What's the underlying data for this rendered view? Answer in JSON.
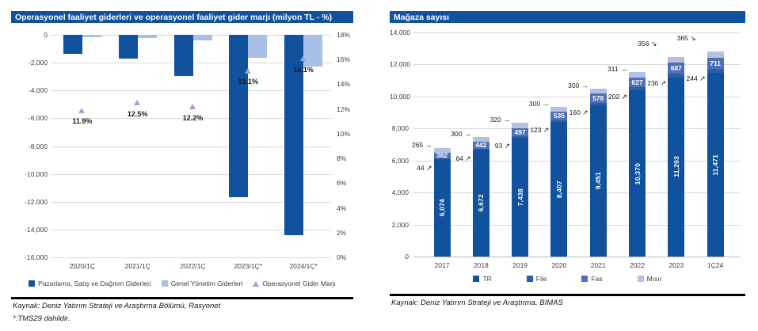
{
  "colors": {
    "header_bg": "#11529E",
    "grid": "#D9D9D9",
    "axis_line": "#BFBFBF",
    "axis_text": "#404040",
    "annotation_text": "#1A1A1A",
    "white_label": "#FFFFFF"
  },
  "left_panel": {
    "source": "Kaynak: Deniz Yatırım Strateji ve Araştırma Bölümü, Rasyonet",
    "footnote": "*:TMS29 dahildir."
  },
  "right_panel": {
    "source": "Kaynak: Deniz Yatırım Strateji ve Araştırma, BIMAS"
  },
  "chart_data": [
    {
      "type": "bar",
      "title": "Operasyonel faaliyet giderleri ve operasyonel faaliyet gider marjı (milyon TL - %)",
      "categories": [
        "2020/1Ç",
        "2021/1Ç",
        "2022/1Ç",
        "2023/1Ç*",
        "2024/1Ç*"
      ],
      "series": [
        {
          "name": "Pazarlama, Satış ve Dağıtım Giderleri",
          "type": "bar",
          "axis": "left",
          "color": "#11529E",
          "values": [
            -1350,
            -1700,
            -2950,
            -11650,
            -14400
          ]
        },
        {
          "name": "Genel Yönetim Giderleri",
          "type": "bar",
          "axis": "left",
          "color": "#A9C0E6",
          "values": [
            -150,
            -250,
            -400,
            -1650,
            -2250
          ]
        },
        {
          "name": "Operasyonel Gider Marjı",
          "type": "scatter",
          "marker": "triangle",
          "axis": "right",
          "color": "#8FAADC",
          "values": [
            11.9,
            12.5,
            12.2,
            15.1,
            16.1
          ],
          "labels": [
            "11.9%",
            "12.5%",
            "12.2%",
            "15.1%",
            "16.1%"
          ]
        }
      ],
      "left_axis": {
        "min": -16000,
        "max": 0,
        "step": 2000,
        "ticks": [
          "0",
          "-2,000",
          "-4,000",
          "-6,000",
          "-8,000",
          "-10,000",
          "-12,000",
          "-14,000",
          "-16,000"
        ]
      },
      "right_axis": {
        "min": 0,
        "max": 18,
        "step": 2,
        "ticks": [
          "18%",
          "16%",
          "14%",
          "12%",
          "10%",
          "8%",
          "6%",
          "4%",
          "2%",
          "0%"
        ]
      },
      "grid": true,
      "legend_position": "bottom"
    },
    {
      "type": "stacked-bar",
      "title": "Mağaza sayısı",
      "categories": [
        "2017",
        "2018",
        "2019",
        "2020",
        "2021",
        "2022",
        "2023",
        "1Ç24"
      ],
      "series": [
        {
          "name": "TR",
          "color": "#11529E",
          "values": [
            6074,
            6672,
            7438,
            8407,
            9451,
            10370,
            11203,
            11471
          ],
          "labels": [
            "6,074",
            "6,672",
            "7,438",
            "8,407",
            "9,451",
            "10,370",
            "11,203",
            "11,471"
          ],
          "label_style": "white-vertical-inside"
        },
        {
          "name": "File",
          "color": "#2E5CA6",
          "values": [
            44,
            64,
            93,
            123,
            160,
            202,
            236,
            244
          ],
          "labels": [
            "44",
            "64",
            "93",
            "123",
            "160",
            "202",
            "236",
            "244"
          ],
          "label_style": "black-arrow-left"
        },
        {
          "name": "Fas",
          "color": "#4F70B5",
          "values": [
            382,
            442,
            497,
            535,
            578,
            627,
            687,
            711
          ],
          "labels": [
            "382",
            "442",
            "497",
            "535",
            "578",
            "627",
            "687",
            "711"
          ],
          "label_style": "white-inside"
        },
        {
          "name": "Mısır",
          "color": "#B3C2E0",
          "values": [
            265,
            300,
            320,
            300,
            300,
            311,
            356,
            365
          ],
          "labels": [
            "265",
            "300",
            "320",
            "300",
            "300",
            "311",
            "356",
            "365"
          ],
          "label_style": "black-arrow-top"
        }
      ],
      "y_axis": {
        "min": 0,
        "max": 14000,
        "step": 2000,
        "ticks": [
          "14,000",
          "12,000",
          "10,000",
          "8,000",
          "6,000",
          "4,000",
          "2,000",
          "0"
        ]
      },
      "grid": true,
      "legend_position": "bottom"
    }
  ],
  "icons": {
    "arrow_right": "→",
    "arrow_up_right": "↗",
    "arrow_down_right": "↘",
    "marker_triangle": "triangle-icon"
  }
}
